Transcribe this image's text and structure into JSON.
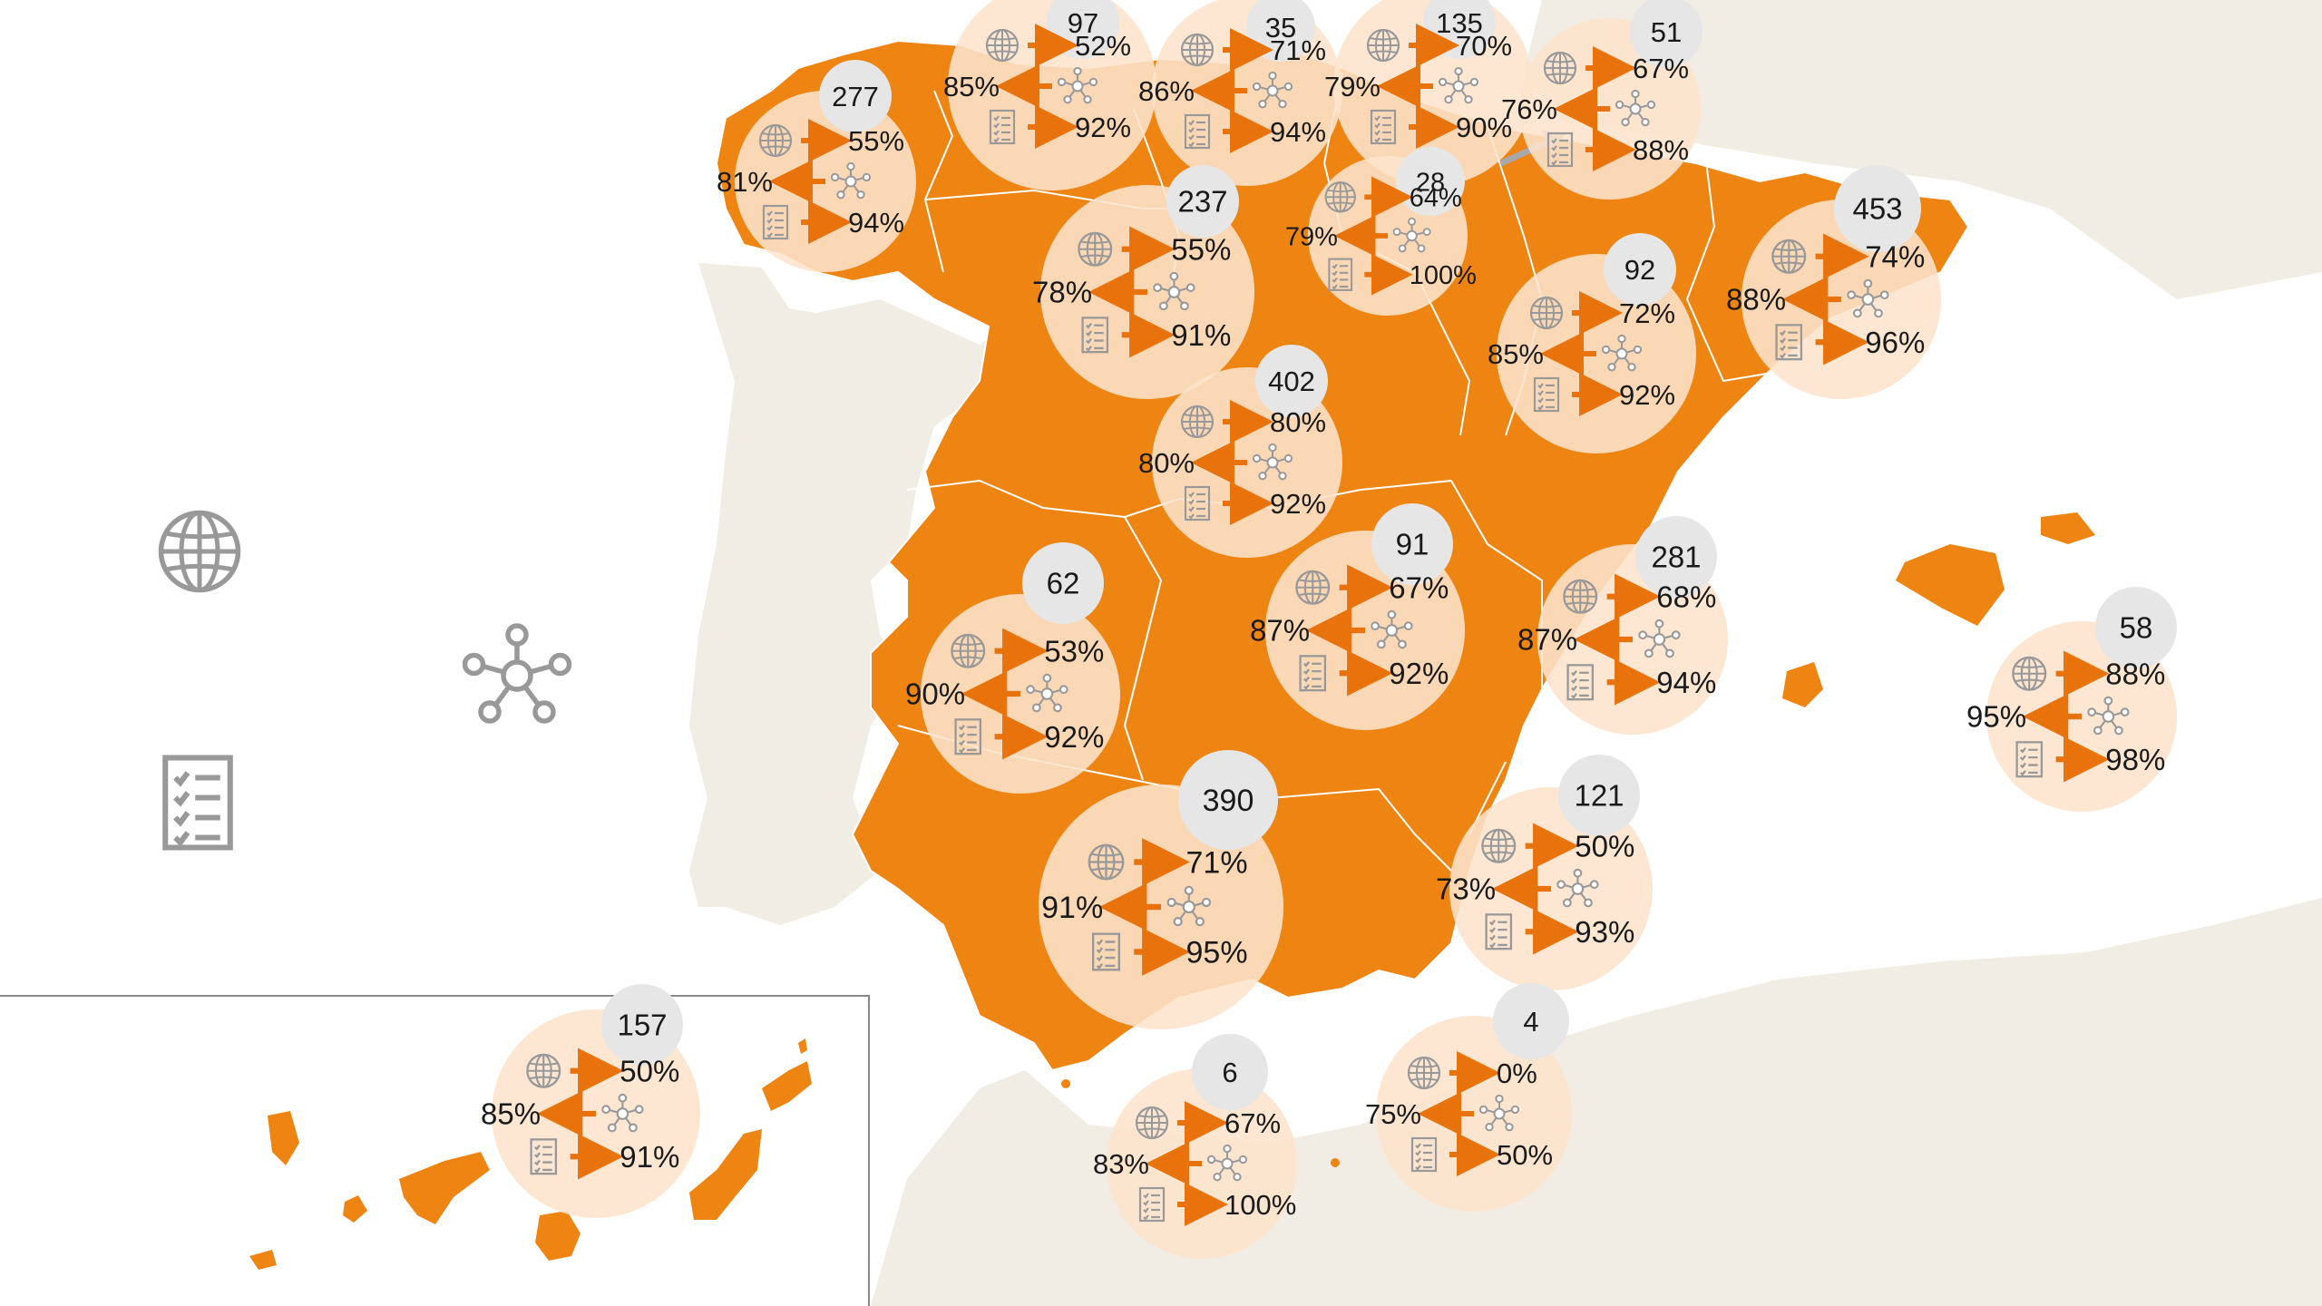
{
  "colors": {
    "land_other": "#f1ede4",
    "spain": "#ee8412",
    "bubble": "#fde4cc",
    "badge": "#e6e6e6",
    "arrow": "#e8730c",
    "icon": "#999999",
    "region_border": "#ffffff",
    "text": "#1a1a1a",
    "connector_arrow": "#a8a8a8"
  },
  "legend": [
    {
      "icon": "globe-icon"
    },
    {
      "icon": "network-icon"
    },
    {
      "icon": "checklist-icon"
    }
  ],
  "regions": [
    {
      "count": "277",
      "web": "55%",
      "net": "81%",
      "list": "94%"
    },
    {
      "count": "97",
      "web": "52%",
      "net": "85%",
      "list": "92%"
    },
    {
      "count": "35",
      "web": "71%",
      "net": "86%",
      "list": "94%"
    },
    {
      "count": "135",
      "web": "70%",
      "net": "79%",
      "list": "90%"
    },
    {
      "count": "51",
      "web": "67%",
      "net": "76%",
      "list": "88%"
    },
    {
      "count": "28",
      "web": "64%",
      "net": "79%",
      "list": "100%"
    },
    {
      "count": "237",
      "web": "55%",
      "net": "78%",
      "list": "91%"
    },
    {
      "count": "92",
      "web": "72%",
      "net": "85%",
      "list": "92%"
    },
    {
      "count": "453",
      "web": "74%",
      "net": "88%",
      "list": "96%"
    },
    {
      "count": "402",
      "web": "80%",
      "net": "80%",
      "list": "92%"
    },
    {
      "count": "62",
      "web": "53%",
      "net": "90%",
      "list": "92%"
    },
    {
      "count": "91",
      "web": "67%",
      "net": "87%",
      "list": "92%"
    },
    {
      "count": "281",
      "web": "68%",
      "net": "87%",
      "list": "94%"
    },
    {
      "count": "58",
      "web": "88%",
      "net": "95%",
      "list": "98%"
    },
    {
      "count": "390",
      "web": "71%",
      "net": "91%",
      "list": "95%"
    },
    {
      "count": "121",
      "web": "50%",
      "net": "73%",
      "list": "93%"
    },
    {
      "count": "157",
      "web": "50%",
      "net": "85%",
      "list": "91%"
    },
    {
      "count": "6",
      "web": "67%",
      "net": "83%",
      "list": "100%"
    },
    {
      "count": "4",
      "web": "0%",
      "net": "75%",
      "list": "50%"
    }
  ]
}
